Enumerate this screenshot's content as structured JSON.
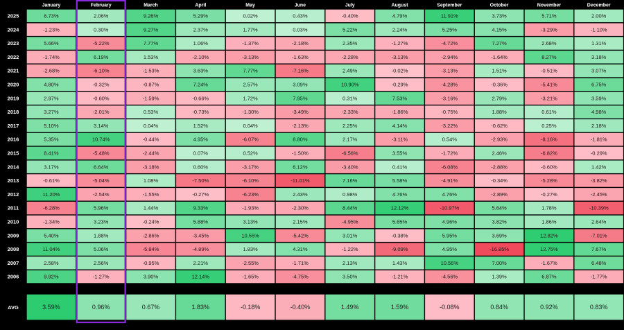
{
  "chart_data": {
    "type": "heatmap",
    "columns": [
      "January",
      "February",
      "March",
      "April",
      "May",
      "June",
      "July",
      "August",
      "September",
      "October",
      "November",
      "December"
    ],
    "rows": [
      {
        "label": "2025",
        "values": [
          "6.73%",
          "2.06%",
          "9.26%",
          "5.29%",
          "0.02%",
          "0.43%",
          "-0.40%",
          "4.79%",
          "11.91%",
          "3.73%",
          "5.71%",
          "2.00%"
        ]
      },
      {
        "label": "2024",
        "values": [
          "-1.23%",
          "0.30%",
          "9.27%",
          "2.37%",
          "1.77%",
          "0.03%",
          "5.22%",
          "2.24%",
          "5.25%",
          "4.15%",
          "-3.29%",
          "-1.10%"
        ]
      },
      {
        "label": "2023",
        "values": [
          "5.66%",
          "-5.22%",
          "7.77%",
          "1.06%",
          "-1.37%",
          "-2.18%",
          "2.35%",
          "-1.27%",
          "-4.72%",
          "7.27%",
          "2.68%",
          "1.31%"
        ]
      },
      {
        "label": "2022",
        "values": [
          "-1.74%",
          "6.19%",
          "1.53%",
          "-2.10%",
          "-3.13%",
          "-1.63%",
          "-2.28%",
          "-3.13%",
          "-2.94%",
          "-1.64%",
          "8.27%",
          "3.18%"
        ]
      },
      {
        "label": "2021",
        "values": [
          "-2.68%",
          "-6.10%",
          "-1.53%",
          "3.63%",
          "7.77%",
          "-7.16%",
          "2.49%",
          "-0.02%",
          "-3.13%",
          "1.51%",
          "-0.51%",
          "3.07%"
        ]
      },
      {
        "label": "2020",
        "values": [
          "4.80%",
          "-0.32%",
          "-0.87%",
          "7.24%",
          "2.57%",
          "3.09%",
          "10.90%",
          "-0.29%",
          "-4.28%",
          "-0.36%",
          "-5.41%",
          "6.75%"
        ]
      },
      {
        "label": "2019",
        "values": [
          "2.97%",
          "-0.60%",
          "-1.59%",
          "-0.66%",
          "1.72%",
          "7.95%",
          "0.31%",
          "7.53%",
          "-3.16%",
          "2.79%",
          "-3.21%",
          "3.59%"
        ]
      },
      {
        "label": "2018",
        "values": [
          "3.27%",
          "-2.01%",
          "0.53%",
          "-0.73%",
          "-1.30%",
          "-3.49%",
          "-2.33%",
          "-1.86%",
          "-0.75%",
          "1.88%",
          "0.61%",
          "4.98%"
        ]
      },
      {
        "label": "2017",
        "values": [
          "5.10%",
          "3.14%",
          "0.04%",
          "1.52%",
          "0.04%",
          "-2.13%",
          "2.25%",
          "4.14%",
          "-3.22%",
          "-0.62%",
          "0.25%",
          "2.18%"
        ]
      },
      {
        "label": "2016",
        "values": [
          "5.35%",
          "10.74%",
          "-0.44%",
          "4.95%",
          "-6.07%",
          "8.80%",
          "2.17%",
          "-3.11%",
          "0.54%",
          "-2.93%",
          "-8.16%",
          "-1.81%"
        ]
      },
      {
        "label": "2015",
        "values": [
          "8.41%",
          "-5.48%",
          "-2.44%",
          "0.07%",
          "0.52%",
          "-1.50%",
          "-6.56%",
          "3.55%",
          "-1.72%",
          "2.46%",
          "-6.82%",
          "-0.29%"
        ]
      },
      {
        "label": "2014",
        "values": [
          "3.17%",
          "6.64%",
          "-3.18%",
          "0.60%",
          "-3.17%",
          "6.12%",
          "-3.40%",
          "0.41%",
          "-6.08%",
          "-2.88%",
          "-0.60%",
          "1.42%"
        ]
      },
      {
        "label": "2013",
        "values": [
          "-0.61%",
          "-5.04%",
          "1.08%",
          "-7.50%",
          "-6.10%",
          "-11.01%",
          "7.16%",
          "5.58%",
          "-4.91%",
          "-0.34%",
          "-5.28%",
          "-3.82%"
        ]
      },
      {
        "label": "2012",
        "values": [
          "11.20%",
          "-2.54%",
          "-1.55%",
          "-0.27%",
          "-6.23%",
          "2.43%",
          "0.98%",
          "4.76%",
          "4.76%",
          "-2.89%",
          "-0.27%",
          "-2.45%"
        ]
      },
      {
        "label": "2011",
        "values": [
          "-6.28%",
          "5.96%",
          "1.44%",
          "9.33%",
          "-1.93%",
          "-2.30%",
          "8.44%",
          "12.12%",
          "-10.97%",
          "5.64%",
          "1.78%",
          "-10.39%"
        ]
      },
      {
        "label": "2010",
        "values": [
          "-1.34%",
          "3.23%",
          "-0.24%",
          "5.88%",
          "3.13%",
          "2.15%",
          "-4.95%",
          "5.65%",
          "4.96%",
          "3.82%",
          "1.86%",
          "2.64%"
        ]
      },
      {
        "label": "2009",
        "values": [
          "5.40%",
          "1.88%",
          "-2.86%",
          "-3.45%",
          "10.55%",
          "-5.42%",
          "3.01%",
          "-0.38%",
          "5.95%",
          "3.69%",
          "12.82%",
          "-7.01%"
        ]
      },
      {
        "label": "2008",
        "values": [
          "11.04%",
          "5.06%",
          "-5.84%",
          "-4.89%",
          "1.83%",
          "4.31%",
          "-1.22%",
          "-9.09%",
          "4.95%",
          "-16.85%",
          "12.75%",
          "7.67%"
        ]
      },
      {
        "label": "2007",
        "values": [
          "2.58%",
          "2.56%",
          "-0.95%",
          "2.21%",
          "-2.55%",
          "-1.71%",
          "2.13%",
          "1.43%",
          "10.56%",
          "7.00%",
          "-1.67%",
          "6.48%"
        ]
      },
      {
        "label": "2006",
        "values": [
          "9.92%",
          "-1.27%",
          "3.90%",
          "12.14%",
          "-1.65%",
          "-4.75%",
          "3.50%",
          "-1.21%",
          "-4.56%",
          "1.39%",
          "6.87%",
          "-1.77%"
        ]
      }
    ],
    "avg": {
      "label": "AVG",
      "values": [
        "3.59%",
        "0.96%",
        "0.67%",
        "1.83%",
        "-0.18%",
        "-0.40%",
        "1.49%",
        "1.59%",
        "-0.08%",
        "0.84%",
        "0.92%",
        "0.83%"
      ]
    },
    "highlighted_column": "February",
    "colors": {
      "positive_light": "#bff0d2",
      "positive_dark": "#2ecc71",
      "negative_light": "#ffc2cb",
      "negative_dark": "#f04a5c",
      "highlight": "#8a2be2",
      "background": "#000000",
      "header_text": "#ffffff"
    }
  }
}
